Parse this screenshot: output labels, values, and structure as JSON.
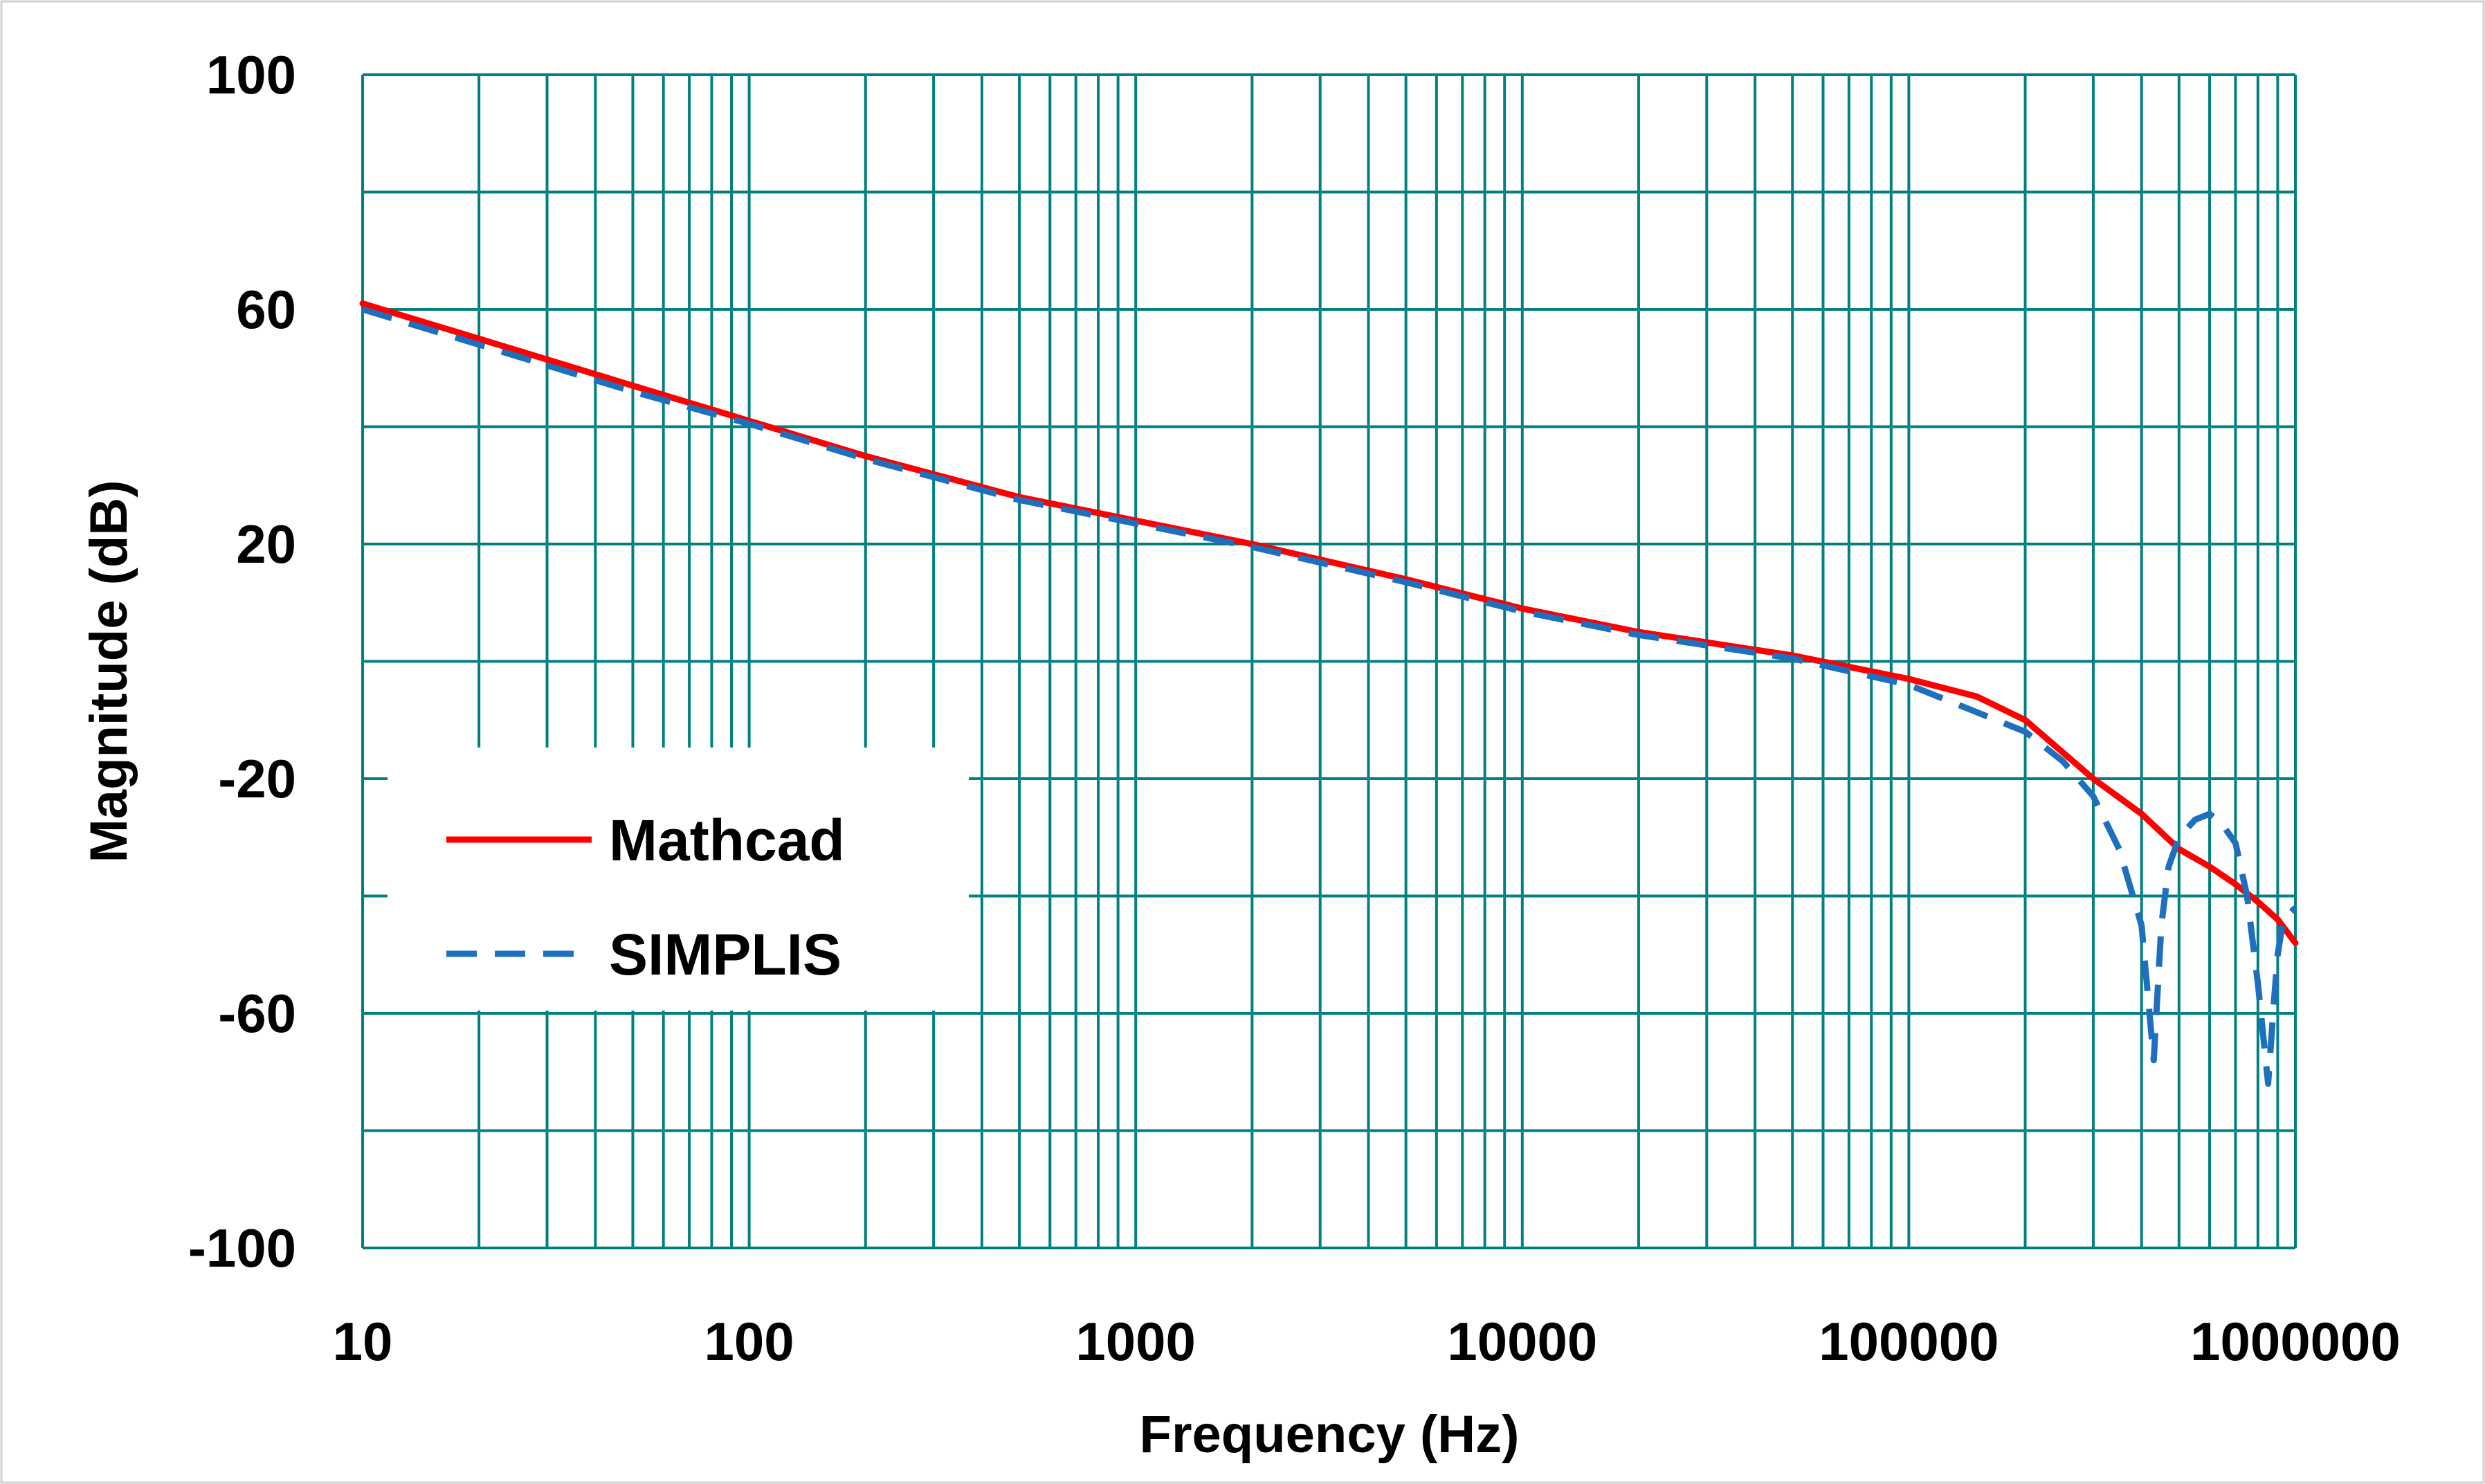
{
  "chart_data": {
    "type": "line",
    "title": "",
    "xlabel": "Frequency (Hz)",
    "ylabel": "Magnitude (dB)",
    "xscale": "log",
    "xlim": [
      10,
      1000000
    ],
    "ylim": [
      -100,
      100
    ],
    "x_ticks": [
      "10",
      "100",
      "1000",
      "10000",
      "100000",
      "1000000"
    ],
    "y_ticks": [
      "100",
      "60",
      "20",
      "-20",
      "-60",
      "-100"
    ],
    "grid": true,
    "legend_position": "left",
    "colors": {
      "grid": "#008080",
      "mathcad": "#ff0000",
      "simplis": "#1f6fbf"
    },
    "series": [
      {
        "name": "Mathcad",
        "style": "solid",
        "x": [
          10,
          20,
          50,
          100,
          200,
          500,
          1000,
          2000,
          5000,
          10000,
          20000,
          50000,
          100000,
          150000,
          200000,
          300000,
          400000,
          500000,
          600000,
          700000,
          800000,
          900000,
          1000000
        ],
        "y": [
          61,
          55,
          47,
          41,
          35,
          28,
          24,
          20,
          14,
          9,
          5,
          1,
          -3,
          -6,
          -10,
          -20,
          -26,
          -32,
          -35,
          -38,
          -41,
          -44,
          -48
        ]
      },
      {
        "name": "SIMPLIS",
        "style": "dashed",
        "x": [
          10,
          20,
          50,
          100,
          200,
          500,
          1000,
          2000,
          5000,
          10000,
          20000,
          50000,
          100000,
          200000,
          250000,
          300000,
          350000,
          400000,
          430000,
          450000,
          470000,
          500000,
          550000,
          600000,
          650000,
          700000,
          750000,
          800000,
          850000,
          880000,
          900000,
          930000,
          1000000
        ],
        "y": [
          60,
          54,
          46,
          40.5,
          34.5,
          27.5,
          23.5,
          19.5,
          13.5,
          8.5,
          4.5,
          0.5,
          -4,
          -12,
          -17,
          -23,
          -32,
          -45,
          -68,
          -45,
          -35,
          -30,
          -27,
          -26,
          -28,
          -31,
          -40,
          -55,
          -72,
          -58,
          -50,
          -44,
          -42
        ]
      }
    ]
  }
}
